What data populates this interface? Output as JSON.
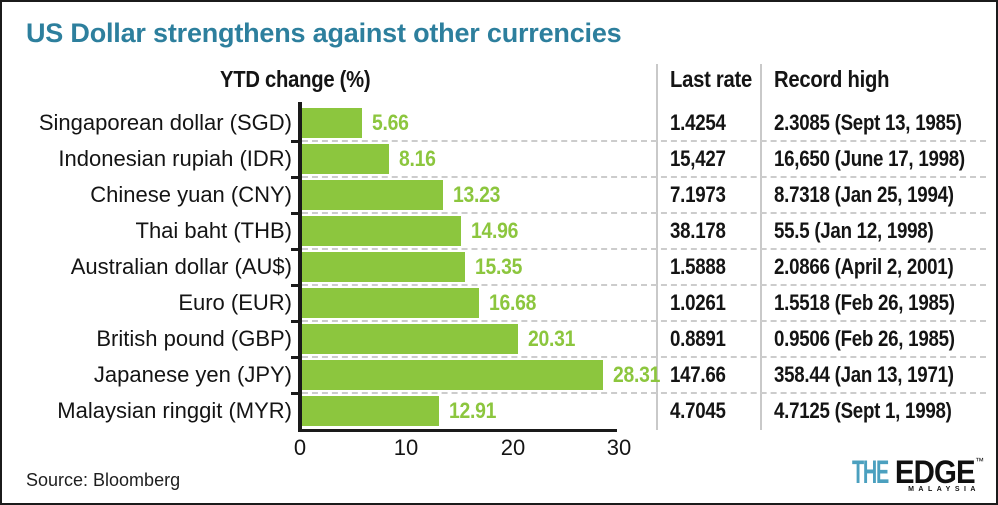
{
  "title": "US Dollar strengthens against other currencies",
  "headers": {
    "chart": "YTD change (%)",
    "last_rate": "Last rate",
    "record_high": "Record high"
  },
  "rows": [
    {
      "label": "Singaporean dollar (SGD)",
      "ytd": 5.66,
      "ytd_label": "5.66",
      "last_rate": "1.4254",
      "record_high": "2.3085 (Sept 13, 1985)"
    },
    {
      "label": "Indonesian rupiah (IDR)",
      "ytd": 8.16,
      "ytd_label": "8.16",
      "last_rate": "15,427",
      "record_high": "16,650 (June 17, 1998)"
    },
    {
      "label": "Chinese yuan (CNY)",
      "ytd": 13.23,
      "ytd_label": "13.23",
      "last_rate": "7.1973",
      "record_high": "8.7318 (Jan 25, 1994)"
    },
    {
      "label": "Thai baht (THB)",
      "ytd": 14.96,
      "ytd_label": "14.96",
      "last_rate": "38.178",
      "record_high": "55.5 (Jan 12, 1998)"
    },
    {
      "label": "Australian dollar (AU$)",
      "ytd": 15.35,
      "ytd_label": "15.35",
      "last_rate": "1.5888",
      "record_high": "2.0866 (April 2, 2001)"
    },
    {
      "label": "Euro (EUR)",
      "ytd": 16.68,
      "ytd_label": "16.68",
      "last_rate": "1.0261",
      "record_high": "1.5518 (Feb 26, 1985)"
    },
    {
      "label": "British pound (GBP)",
      "ytd": 20.31,
      "ytd_label": "20.31",
      "last_rate": "0.8891",
      "record_high": "0.9506 (Feb 26, 1985)"
    },
    {
      "label": "Japanese yen (JPY)",
      "ytd": 28.31,
      "ytd_label": "28.31",
      "last_rate": "147.66",
      "record_high": "358.44 (Jan 13, 1971)"
    },
    {
      "label": "Malaysian ringgit (MYR)",
      "ytd": 12.91,
      "ytd_label": "12.91",
      "last_rate": "4.7045",
      "record_high": "4.7125 (Sept 1, 1998)"
    }
  ],
  "axis": {
    "ticks": [
      "0",
      "10",
      "20",
      "30"
    ]
  },
  "source": "Source: Bloomberg",
  "logo": {
    "the": "THE",
    "edge": "EDGE",
    "tm": "™",
    "region": "MALAYSIA"
  },
  "colors": {
    "bar_green": "#8cc63e",
    "title_teal": "#2d7f9d",
    "logo_teal": "#4ba0bf",
    "text_black": "#141414",
    "separator_gray": "#c9c9c9",
    "dashed_gray": "#cccccc"
  },
  "chart_data": {
    "type": "bar",
    "orientation": "horizontal",
    "title": "US Dollar strengthens against other currencies",
    "categories": [
      "Singaporean dollar (SGD)",
      "Indonesian rupiah (IDR)",
      "Chinese yuan (CNY)",
      "Thai baht (THB)",
      "Australian dollar (AU$)",
      "Euro (EUR)",
      "British pound (GBP)",
      "Japanese yen (JPY)",
      "Malaysian ringgit (MYR)"
    ],
    "values": [
      5.66,
      8.16,
      13.23,
      14.96,
      15.35,
      16.68,
      20.31,
      28.31,
      12.91
    ],
    "xlabel": "YTD change (%)",
    "xlim": [
      0,
      30
    ],
    "xticks": [
      0,
      10,
      20,
      30
    ],
    "grid": "dashed-row-separators",
    "data_labels": true,
    "table": {
      "columns": [
        "Last rate",
        "Record high"
      ],
      "rows": [
        [
          "1.4254",
          "2.3085 (Sept 13, 1985)"
        ],
        [
          "15,427",
          "16,650 (June 17, 1998)"
        ],
        [
          "7.1973",
          "8.7318 (Jan 25, 1994)"
        ],
        [
          "38.178",
          "55.5 (Jan 12, 1998)"
        ],
        [
          "1.5888",
          "2.0866 (April 2, 2001)"
        ],
        [
          "1.0261",
          "1.5518 (Feb 26, 1985)"
        ],
        [
          "0.8891",
          "0.9506 (Feb 26, 1985)"
        ],
        [
          "147.66",
          "358.44 (Jan 13, 1971)"
        ],
        [
          "4.7045",
          "4.7125 (Sept 1, 1998)"
        ]
      ]
    },
    "source": "Bloomberg"
  }
}
